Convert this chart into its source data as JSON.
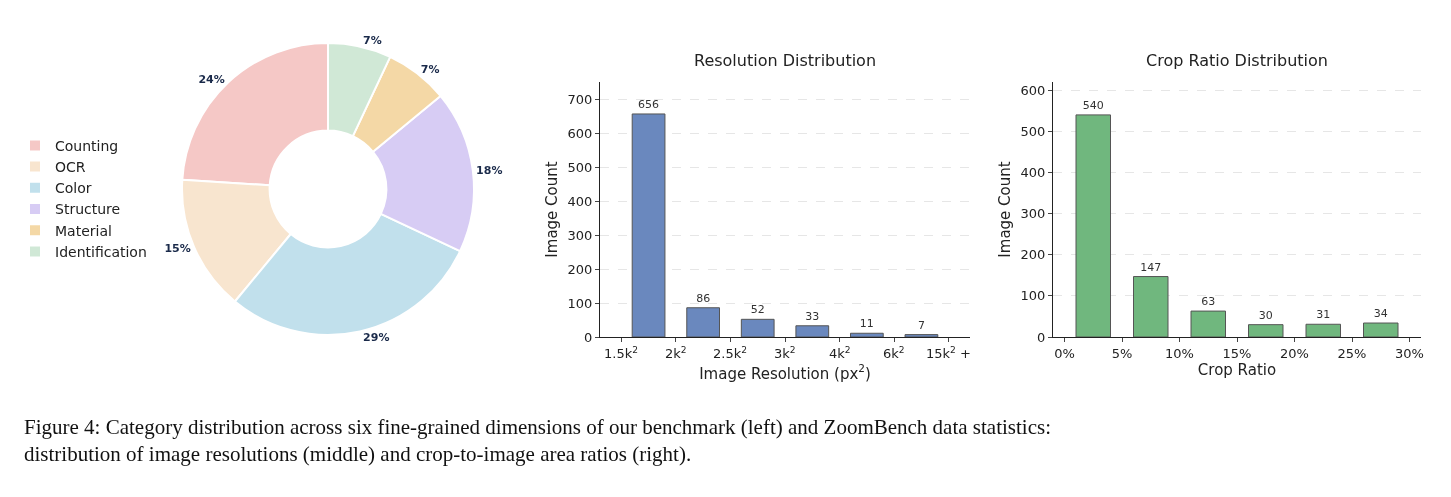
{
  "chart_data": [
    {
      "type": "donut",
      "categories": [
        "Counting",
        "OCR",
        "Color",
        "Structure",
        "Material",
        "Identification"
      ],
      "values": [
        24,
        15,
        29,
        18,
        7,
        7
      ],
      "value_labels": [
        "24%",
        "15%",
        "29%",
        "18%",
        "7%",
        "7%"
      ],
      "colors": [
        "#f5c8c6",
        "#f8e5cf",
        "#c1e0ec",
        "#d7ccf4",
        "#f4d8a6",
        "#d0e8d6"
      ],
      "legend": "left",
      "annotations": [
        "Figure 4: Category distribution across six fine-grained dimensions of our benchmark (left) and ZoomBench data statistics: distribution of image resolutions (middle) and crop-to-image area ratios (right)."
      ]
    },
    {
      "type": "bar",
      "title": "Resolution Distribution",
      "xlabel": "Image Resolution (px$^{2}$)",
      "ylabel": "Image Count",
      "categories": [
        null,
        null,
        null,
        null,
        null,
        null
      ],
      "values": [
        656,
        86,
        52,
        33,
        11,
        7
      ],
      "color": "#6a88be",
      "annotations": [
        "1.5k$^{2}$",
        "2k$^{2}$",
        "2.5k$^{2}$",
        "3k$^{2}$",
        "4k$^{2}$",
        "6k$^{2}$",
        "15k$^{2}$ +"
      ],
      "ylim": [
        0,
        750
      ],
      "yticks": [
        0,
        100,
        200,
        300,
        400,
        500,
        600,
        700
      ],
      "grid": "y",
      "data_labels": true
    },
    {
      "type": "histogram",
      "title": "Crop Ratio Distribution",
      "xlabel": "Crop Ratio",
      "ylabel": "Image Count",
      "bins": [
        0,
        5,
        10,
        15,
        20,
        25,
        30
      ],
      "values": [
        540,
        147,
        63,
        30,
        31,
        34
      ],
      "color": "#70b77e",
      "xlim": [
        -1,
        31
      ],
      "xticks": [
        {
          "value": 0,
          "label": "0%"
        },
        {
          "value": 5,
          "label": "5%"
        },
        {
          "value": 10,
          "label": "10%"
        },
        {
          "value": 15,
          "label": "15%"
        },
        {
          "value": 20,
          "label": "20%"
        },
        {
          "value": 25,
          "label": "25%"
        },
        {
          "value": 30,
          "label": "30%"
        }
      ],
      "ylim": [
        0,
        620
      ],
      "yticks": [
        0,
        100,
        200,
        300,
        400,
        500,
        600
      ],
      "grid": "y",
      "data_labels": true
    }
  ]
}
